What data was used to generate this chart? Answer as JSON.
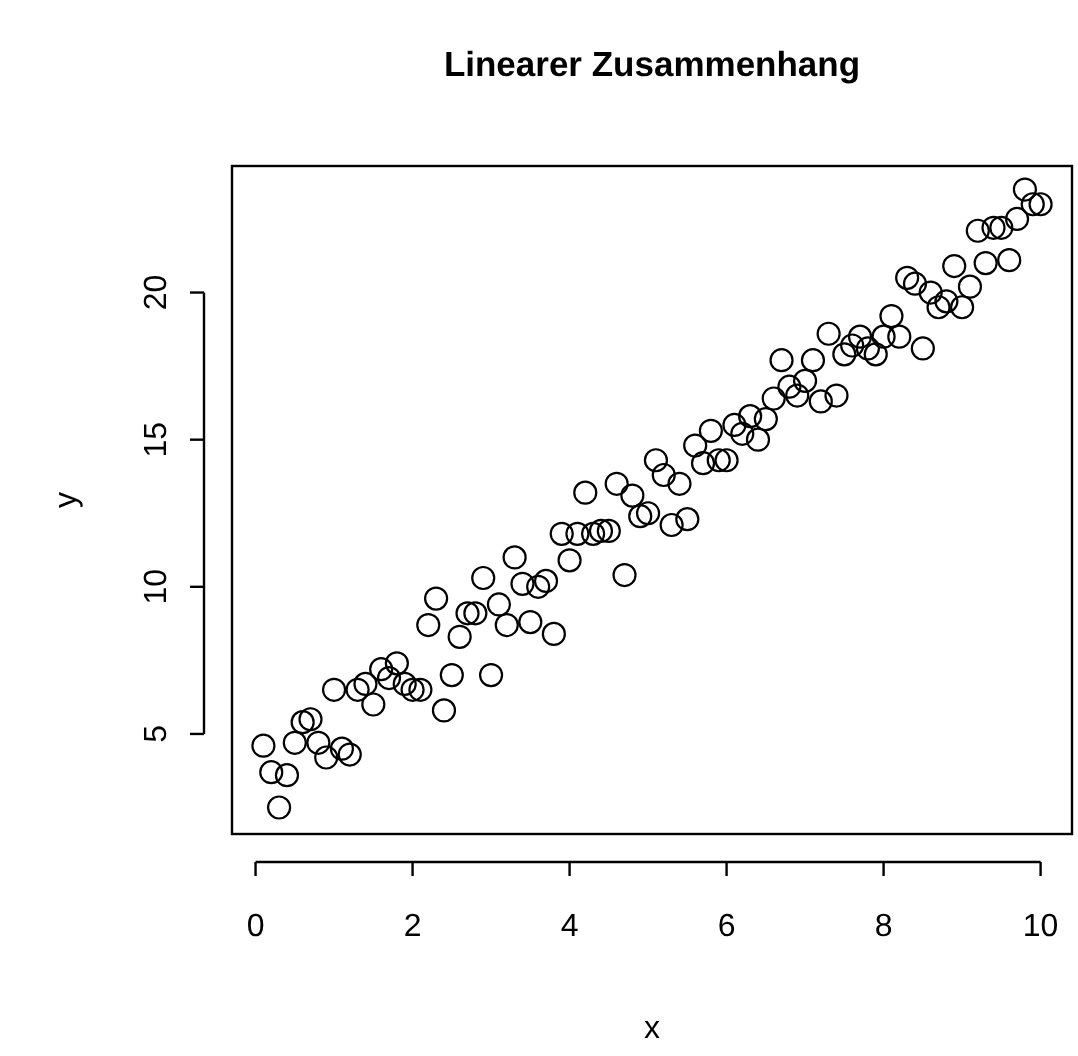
{
  "chart_data": {
    "type": "scatter",
    "title": "Linearer Zusammenhang",
    "xlabel": "x",
    "ylabel": "y",
    "x": [
      0.1,
      0.2,
      0.3,
      0.4,
      0.5,
      0.6,
      0.7,
      0.8,
      0.9,
      1.0,
      1.1,
      1.2,
      1.3,
      1.4,
      1.5,
      1.6,
      1.7,
      1.8,
      1.9,
      2.0,
      2.1,
      2.2,
      2.3,
      2.4,
      2.5,
      2.6,
      2.7,
      2.8,
      2.9,
      3.0,
      3.1,
      3.2,
      3.3,
      3.4,
      3.5,
      3.6,
      3.7,
      3.8,
      3.9,
      4.0,
      4.1,
      4.2,
      4.3,
      4.4,
      4.5,
      4.6,
      4.7,
      4.8,
      4.9,
      5.0,
      5.1,
      5.2,
      5.3,
      5.4,
      5.5,
      5.6,
      5.7,
      5.8,
      5.9,
      6.0,
      6.1,
      6.2,
      6.3,
      6.4,
      6.5,
      6.6,
      6.7,
      6.8,
      6.9,
      7.0,
      7.1,
      7.2,
      7.3,
      7.4,
      7.5,
      7.6,
      7.7,
      7.8,
      7.9,
      8.0,
      8.1,
      8.2,
      8.3,
      8.4,
      8.5,
      8.6,
      8.7,
      8.8,
      8.9,
      9.0,
      9.1,
      9.2,
      9.3,
      9.4,
      9.5,
      9.6,
      9.7,
      9.8,
      9.9,
      10.0
    ],
    "values": [
      4.6,
      3.7,
      2.5,
      3.6,
      4.7,
      5.4,
      5.5,
      4.7,
      4.2,
      6.5,
      4.5,
      4.3,
      6.5,
      6.7,
      6.0,
      7.2,
      6.9,
      7.4,
      6.7,
      6.5,
      6.5,
      8.7,
      9.6,
      5.8,
      7.0,
      8.3,
      9.1,
      9.1,
      10.3,
      7.0,
      9.4,
      8.7,
      11.0,
      10.1,
      8.8,
      10.0,
      10.2,
      8.4,
      11.8,
      10.9,
      11.8,
      13.2,
      11.8,
      11.9,
      11.9,
      13.5,
      10.4,
      13.1,
      12.4,
      12.5,
      14.3,
      13.8,
      12.1,
      13.5,
      12.3,
      14.8,
      14.2,
      15.3,
      14.3,
      14.3,
      15.5,
      15.2,
      15.8,
      15.0,
      15.7,
      16.4,
      17.7,
      16.8,
      16.5,
      17.0,
      17.7,
      16.3,
      18.6,
      16.5,
      17.9,
      18.2,
      18.5,
      18.1,
      17.9,
      18.5,
      19.2,
      18.5,
      20.5,
      20.3,
      18.1,
      20.0,
      19.5,
      19.7,
      20.9,
      19.5,
      20.2,
      22.1,
      21.0,
      22.2,
      22.2,
      21.1,
      22.5,
      23.5,
      23.0,
      23.0
    ],
    "color": "#000000",
    "marker": "circle",
    "xlim": [
      -0.3,
      10.4
    ],
    "ylim": [
      1.6,
      24.3
    ],
    "xticks": [
      0,
      2,
      4,
      6,
      8,
      10
    ],
    "yticks": [
      5,
      10,
      15,
      20
    ],
    "grid": false
  }
}
